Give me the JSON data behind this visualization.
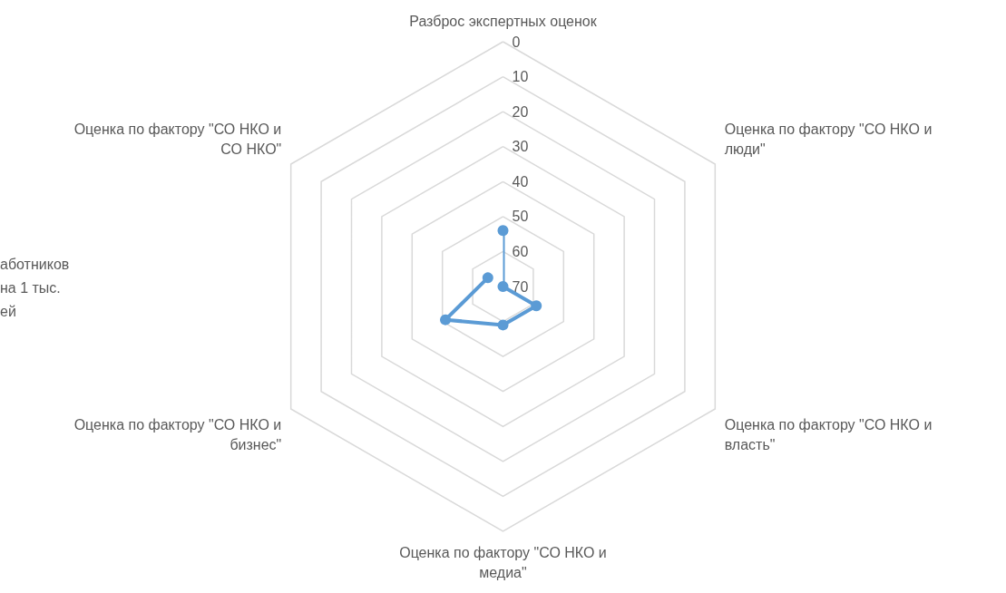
{
  "chart_data": {
    "type": "radar",
    "categories": [
      "Разброс экспертных оценок",
      "Оценка по фактору \"СО НКО и люди\"",
      "Оценка по фактору \"СО НКО и власть\"",
      "Оценка по фактору \"СО НКО и медиа\"",
      "Оценка по фактору \"СО НКО и бизнес\"",
      "Оценка по фактору \"СО НКО и СО НКО\""
    ],
    "series": [
      {
        "color": "#5b9bd5",
        "values": [
          54,
          70,
          59,
          59,
          51,
          65
        ]
      }
    ],
    "ylim": [
      70,
      0
    ],
    "yticks": [
      0,
      10,
      20,
      30,
      40,
      50,
      60,
      70
    ],
    "marker": "circle",
    "grid": true,
    "annotations": [
      "аботников на 1 тыс. ей"
    ]
  }
}
